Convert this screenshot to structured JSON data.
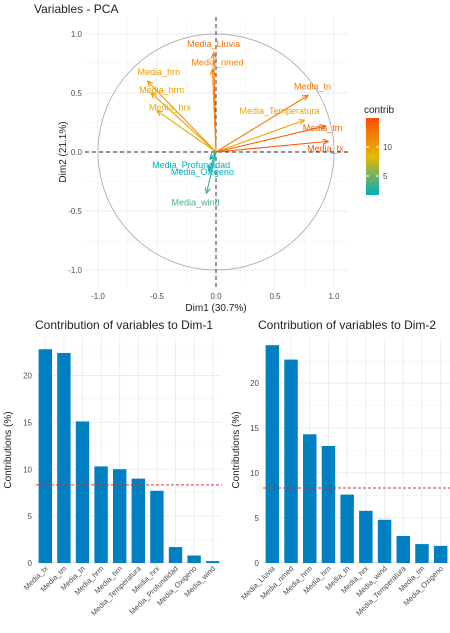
{
  "colors": {
    "low": "#00AFBB",
    "mid": "#E7B800",
    "high": "#FC4E07",
    "bar": "#0080C0",
    "refline": "#E03030",
    "panel": "#ffffff",
    "grid": "#ebebeb",
    "text": "#222222",
    "axis_text": "#4d4d4d"
  },
  "chart_data": [
    {
      "type": "scatter",
      "subtype": "pca-variable-correlation-circle",
      "title": "Variables - PCA",
      "xlabel": "Dim1 (30.7%)",
      "ylabel": "Dim2 (21.1%)",
      "xlim": [
        -1.05,
        1.05
      ],
      "ylim": [
        -1.05,
        1.05
      ],
      "x_ticks": [
        "-1.0",
        "-0.5",
        "0.0",
        "0.5",
        "1.0"
      ],
      "y_ticks": [
        "-1.0",
        "-0.5",
        "0.0",
        "0.5",
        "1.0"
      ],
      "grid": true,
      "legend": {
        "title": "contrib",
        "position": "right",
        "ticks": [
          "10",
          "5"
        ],
        "range": [
          3,
          13
        ]
      },
      "variables": [
        {
          "name": "Media_Lluvia",
          "x": -0.02,
          "y": 0.84,
          "contrib": 11.3
        },
        {
          "name": "Media_nmed",
          "x": -0.03,
          "y": 0.7,
          "contrib": 10.5
        },
        {
          "name": "Media_hrn",
          "x": -0.58,
          "y": 0.6,
          "contrib": 9.6
        },
        {
          "name": "Media_hrm",
          "x": -0.55,
          "y": 0.5,
          "contrib": 9.1
        },
        {
          "name": "Media_hrx",
          "x": -0.5,
          "y": 0.35,
          "contrib": 8.5
        },
        {
          "name": "Media_tn",
          "x": 0.78,
          "y": 0.48,
          "contrib": 11.0
        },
        {
          "name": "Media_Temperatura",
          "x": 0.75,
          "y": 0.27,
          "contrib": 8.9
        },
        {
          "name": "Media_tm",
          "x": 0.93,
          "y": 0.22,
          "contrib": 12.2
        },
        {
          "name": "Media_tx",
          "x": 0.95,
          "y": 0.09,
          "contrib": 12.5
        },
        {
          "name": "Media_Profundidad",
          "x": -0.05,
          "y": -0.06,
          "contrib": 2.9
        },
        {
          "name": "Media_Oxigeno",
          "x": -0.06,
          "y": -0.16,
          "contrib": 2.8
        },
        {
          "name": "Media_wind",
          "x": -0.08,
          "y": -0.35,
          "contrib": 4.6
        }
      ]
    },
    {
      "type": "bar",
      "title": "Contribution of variables to Dim-1",
      "xlabel": "",
      "ylabel": "Contributions (%)",
      "ylim": [
        0,
        24
      ],
      "y_ticks": [
        0,
        5,
        10,
        15,
        20
      ],
      "reference_line": 8.33,
      "categories": [
        "Media_tx",
        "Media_tm",
        "Media_tn",
        "Media_hrm",
        "Media_hrn",
        "Media_Temperatura",
        "Media_hrx",
        "Media_Profundidad",
        "Media_Oxigeno",
        "Media_wind"
      ],
      "values": [
        22.8,
        22.4,
        15.1,
        10.3,
        10.0,
        9.0,
        7.7,
        1.7,
        0.8,
        0.2
      ]
    },
    {
      "type": "bar",
      "title": "Contribution of variables to Dim-2",
      "xlabel": "",
      "ylabel": "Contributions (%)",
      "ylim": [
        0,
        25
      ],
      "y_ticks": [
        0,
        5,
        10,
        15,
        20
      ],
      "reference_line": 8.33,
      "categories": [
        "Media_Lluvia",
        "Media_nmed",
        "Media_hrm",
        "Media_hrn",
        "Media_tn",
        "Media_hrx",
        "Media_wind",
        "Media_Temperatura",
        "Media_tm",
        "Media_Oxigeno"
      ],
      "values": [
        24.2,
        22.6,
        14.3,
        13.0,
        7.6,
        5.8,
        4.8,
        3.0,
        2.1,
        1.9
      ]
    }
  ]
}
